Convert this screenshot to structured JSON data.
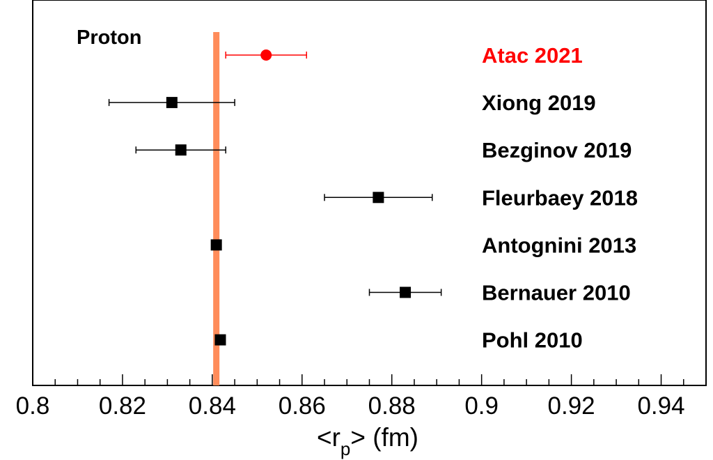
{
  "chart_data": {
    "type": "scatter",
    "panel_label": "Proton",
    "xlabel": {
      "base": "<r",
      "subscript": "p",
      "suffix": "> (fm)"
    },
    "ylabel": "",
    "xlim": [
      0.8,
      0.95
    ],
    "x_ticks": [
      "0.8",
      "0.82",
      "0.84",
      "0.86",
      "0.88",
      "0.9",
      "0.92",
      "0.94"
    ],
    "x_tick_values": [
      0.8,
      0.82,
      0.84,
      0.86,
      0.88,
      0.9,
      0.92,
      0.94
    ],
    "reference_band": {
      "value": 0.8409,
      "color": "#ff8c5a"
    },
    "grid": false,
    "points": [
      {
        "label": "Atac 2021",
        "x": 0.852,
        "err": 0.009,
        "marker": "circle",
        "color": "#ff0000"
      },
      {
        "label": "Xiong 2019",
        "x": 0.831,
        "err": 0.014,
        "marker": "square",
        "color": "#000000"
      },
      {
        "label": "Bezginov 2019",
        "x": 0.833,
        "err": 0.01,
        "marker": "square",
        "color": "#000000"
      },
      {
        "label": "Fleurbaey 2018",
        "x": 0.877,
        "err": 0.012,
        "marker": "square",
        "color": "#000000"
      },
      {
        "label": "Antognini 2013",
        "x": 0.8409,
        "err": 0.0004,
        "marker": "square",
        "color": "#000000"
      },
      {
        "label": "Bernauer 2010",
        "x": 0.883,
        "err": 0.008,
        "marker": "square",
        "color": "#000000"
      },
      {
        "label": "Pohl 2010",
        "x": 0.8418,
        "err": 0.0007,
        "marker": "square",
        "color": "#000000"
      }
    ]
  }
}
